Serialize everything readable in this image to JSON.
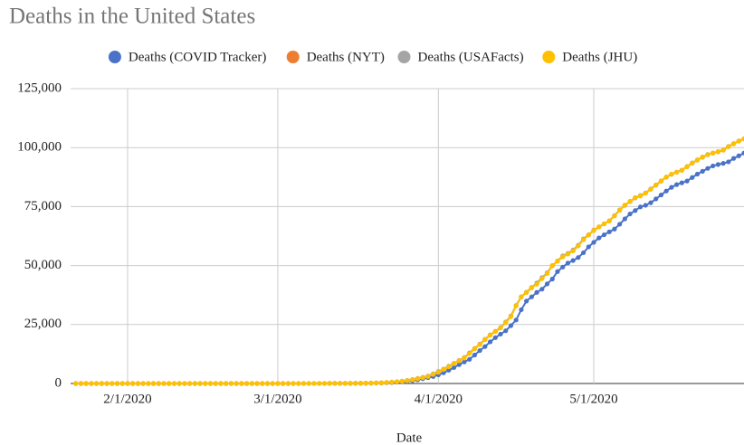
{
  "chart_data": {
    "type": "line",
    "title": "Deaths in the United States",
    "x_label": "Date",
    "legend": "top",
    "grid": true,
    "x": [
      "1/22/2020",
      "1/23/2020",
      "1/24/2020",
      "1/25/2020",
      "1/26/2020",
      "1/27/2020",
      "1/28/2020",
      "1/29/2020",
      "1/30/2020",
      "1/31/2020",
      "2/1/2020",
      "2/2/2020",
      "2/3/2020",
      "2/4/2020",
      "2/5/2020",
      "2/6/2020",
      "2/7/2020",
      "2/8/2020",
      "2/9/2020",
      "2/10/2020",
      "2/11/2020",
      "2/12/2020",
      "2/13/2020",
      "2/14/2020",
      "2/15/2020",
      "2/16/2020",
      "2/17/2020",
      "2/18/2020",
      "2/19/2020",
      "2/20/2020",
      "2/21/2020",
      "2/22/2020",
      "2/23/2020",
      "2/24/2020",
      "2/25/2020",
      "2/26/2020",
      "2/27/2020",
      "2/28/2020",
      "2/29/2020",
      "3/1/2020",
      "3/2/2020",
      "3/3/2020",
      "3/4/2020",
      "3/5/2020",
      "3/6/2020",
      "3/7/2020",
      "3/8/2020",
      "3/9/2020",
      "3/10/2020",
      "3/11/2020",
      "3/12/2020",
      "3/13/2020",
      "3/14/2020",
      "3/15/2020",
      "3/16/2020",
      "3/17/2020",
      "3/18/2020",
      "3/19/2020",
      "3/20/2020",
      "3/21/2020",
      "3/22/2020",
      "3/23/2020",
      "3/24/2020",
      "3/25/2020",
      "3/26/2020",
      "3/27/2020",
      "3/28/2020",
      "3/29/2020",
      "3/30/2020",
      "3/31/2020",
      "4/1/2020",
      "4/2/2020",
      "4/3/2020",
      "4/4/2020",
      "4/5/2020",
      "4/6/2020",
      "4/7/2020",
      "4/8/2020",
      "4/9/2020",
      "4/10/2020",
      "4/11/2020",
      "4/12/2020",
      "4/13/2020",
      "4/14/2020",
      "4/15/2020",
      "4/16/2020",
      "4/17/2020",
      "4/18/2020",
      "4/19/2020",
      "4/20/2020",
      "4/21/2020",
      "4/22/2020",
      "4/23/2020",
      "4/24/2020",
      "4/25/2020",
      "4/26/2020",
      "4/27/2020",
      "4/28/2020",
      "4/29/2020",
      "4/30/2020",
      "5/1/2020",
      "5/2/2020",
      "5/3/2020",
      "5/4/2020",
      "5/5/2020",
      "5/6/2020",
      "5/7/2020",
      "5/8/2020",
      "5/9/2020",
      "5/10/2020",
      "5/11/2020",
      "5/12/2020",
      "5/13/2020",
      "5/14/2020",
      "5/15/2020",
      "5/16/2020",
      "5/17/2020",
      "5/18/2020",
      "5/19/2020",
      "5/20/2020",
      "5/21/2020",
      "5/22/2020",
      "5/23/2020",
      "5/24/2020",
      "5/25/2020",
      "5/26/2020",
      "5/27/2020",
      "5/28/2020",
      "5/29/2020",
      "5/30/2020"
    ],
    "series": [
      {
        "name": "Deaths (COVID Tracker)",
        "color": "#4a72c8",
        "values": [
          0,
          0,
          0,
          0,
          0,
          0,
          0,
          0,
          0,
          0,
          0,
          0,
          0,
          0,
          0,
          0,
          0,
          0,
          0,
          0,
          0,
          0,
          0,
          0,
          0,
          0,
          0,
          0,
          0,
          0,
          0,
          0,
          0,
          0,
          0,
          0,
          0,
          0,
          0,
          0,
          1,
          6,
          9,
          11,
          12,
          14,
          17,
          21,
          22,
          28,
          36,
          40,
          47,
          54,
          63,
          85,
          108,
          118,
          200,
          244,
          307,
          427,
          552,
          706,
          942,
          1209,
          1581,
          2026,
          2467,
          2978,
          3679,
          4519,
          5630,
          6733,
          7987,
          9138,
          10244,
          12086,
          13960,
          15654,
          17657,
          19440,
          20919,
          22353,
          24540,
          26910,
          31270,
          34934,
          36731,
          38628,
          39989,
          42222,
          44291,
          47456,
          49352,
          51067,
          52137,
          53408,
          55437,
          57919,
          59846,
          61696,
          63051,
          64298,
          65476,
          67511,
          69782,
          71879,
          73321,
          74855,
          75550,
          76648,
          78257,
          79913,
          81603,
          83154,
          84316,
          85084,
          85830,
          87325,
          88767,
          89967,
          91180,
          92233,
          92834,
          93309,
          93970,
          95420,
          96536,
          97694
        ]
      },
      {
        "name": "Deaths (NYT)",
        "color": "#ed7d31",
        "values": [
          0,
          0,
          0,
          0,
          0,
          0,
          0,
          0,
          0,
          0,
          0,
          0,
          0,
          0,
          0,
          0,
          0,
          0,
          0,
          0,
          0,
          0,
          0,
          0,
          0,
          0,
          0,
          0,
          0,
          0,
          0,
          0,
          0,
          0,
          0,
          0,
          0,
          0,
          1,
          1,
          6,
          10,
          11,
          12,
          15,
          19,
          22,
          26,
          30,
          38,
          42,
          48,
          57,
          68,
          86,
          110,
          150,
          205,
          260,
          320,
          440,
          570,
          740,
          960,
          1260,
          1650,
          2100,
          2540,
          3080,
          4050,
          4970,
          6050,
          7230,
          8550,
          9740,
          11000,
          13000,
          14800,
          16700,
          18700,
          20600,
          22100,
          23700,
          26000,
          28600,
          33000,
          36700,
          38600,
          40600,
          42400,
          44700,
          46900,
          50000,
          51900,
          53700,
          54900,
          56300,
          58400,
          61000,
          63000,
          64900,
          66400,
          67700,
          69000,
          71100,
          73500,
          75600,
          77200,
          78700,
          79500,
          80700,
          82400,
          84100,
          85800,
          87500,
          88700,
          89600,
          90400,
          91900,
          93400,
          94700,
          96000,
          97000,
          97700,
          98200,
          98900,
          100400,
          101600,
          102800,
          103700
        ]
      },
      {
        "name": "Deaths (USAFacts)",
        "color": "#a5a5a5",
        "values": [
          0,
          0,
          0,
          0,
          0,
          0,
          0,
          0,
          0,
          0,
          0,
          0,
          0,
          0,
          0,
          0,
          0,
          0,
          0,
          0,
          0,
          0,
          0,
          0,
          0,
          0,
          0,
          0,
          0,
          0,
          0,
          0,
          0,
          0,
          0,
          0,
          0,
          0,
          1,
          1,
          6,
          9,
          11,
          12,
          14,
          17,
          21,
          22,
          29,
          37,
          41,
          48,
          58,
          69,
          87,
          109,
          150,
          206,
          255,
          340,
          460,
          590,
          780,
          1040,
          1300,
          1700,
          2190,
          2600,
          3170,
          4080,
          5110,
          6090,
          7360,
          8490,
          9640,
          10980,
          12900,
          14800,
          16670,
          18700,
          20560,
          22090,
          23640,
          26060,
          28570,
          33080,
          36790,
          38740,
          40760,
          42600,
          44880,
          46920,
          49860,
          51970,
          54110,
          55170,
          56630,
          58630,
          61320,
          63090,
          65100,
          66400,
          67700,
          68900,
          71200,
          73600,
          75500,
          77100,
          78800,
          79700,
          80800,
          82500,
          84200,
          85900,
          87500,
          88700,
          89600,
          90400,
          92000,
          93500,
          94800,
          95900,
          97100,
          97700,
          98300,
          99000,
          100500,
          101700,
          102800,
          103800
        ]
      },
      {
        "name": "Deaths (JHU)",
        "color": "#ffc000",
        "values": [
          0,
          0,
          0,
          0,
          0,
          0,
          0,
          0,
          0,
          0,
          0,
          0,
          0,
          0,
          0,
          0,
          0,
          0,
          0,
          0,
          0,
          0,
          0,
          0,
          0,
          0,
          0,
          0,
          0,
          0,
          0,
          0,
          0,
          0,
          0,
          0,
          0,
          0,
          1,
          1,
          6,
          9,
          11,
          12,
          14,
          17,
          21,
          22,
          28,
          36,
          40,
          47,
          54,
          63,
          85,
          108,
          118,
          200,
          244,
          307,
          427,
          552,
          706,
          942,
          1209,
          1581,
          2026,
          2467,
          2978,
          3873,
          4757,
          5926,
          7087,
          8407,
          9619,
          10783,
          12722,
          14695,
          16478,
          18586,
          20463,
          22020,
          23529,
          25832,
          28326,
          32916,
          36773,
          38664,
          40661,
          42094,
          44444,
          46622,
          49954,
          51949,
          53755,
          54881,
          56219,
          58355,
          60967,
          62996,
          64943,
          66369,
          67682,
          68922,
          71064,
          73455,
          75662,
          77180,
          78795,
          79526,
          80682,
          82376,
          84119,
          85898,
          87530,
          88754,
          89562,
          90347,
          91921,
          93439,
          94702,
          95979,
          97087,
          97720,
          98220,
          98916,
          100442,
          101617,
          102836,
          103781
        ]
      }
    ],
    "xlim": [
      "1/21/2020",
      "5/30/2020"
    ],
    "xticks": [
      "2/1/2020",
      "3/1/2020",
      "4/1/2020",
      "5/1/2020"
    ],
    "ylim": [
      0,
      125000
    ],
    "yticks": [
      0,
      {
        "value": 25000,
        "label": "25,000"
      },
      {
        "value": 50000,
        "label": "50,000"
      },
      {
        "value": 75000,
        "label": "75,000"
      },
      {
        "value": 100000,
        "label": "100,000"
      },
      {
        "value": 125000,
        "label": "125,000"
      }
    ]
  }
}
